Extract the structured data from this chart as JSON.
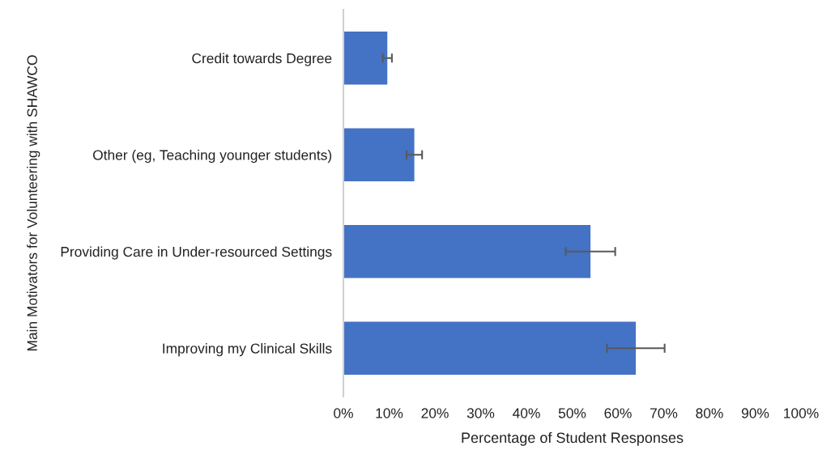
{
  "chart_data": {
    "type": "bar",
    "orientation": "horizontal",
    "xlabel": "Percentage of Student Responses",
    "ylabel": "Main Motivators for Volunteering with SHAWCO",
    "categories": [
      "Credit towards Degree",
      "Other (eg, Teaching younger students)",
      "Providing Care in Under-resourced Settings",
      "Improving my Clinical Skills"
    ],
    "values": [
      9.6,
      15.5,
      54.0,
      63.9
    ],
    "errors": [
      1.0,
      1.7,
      5.4,
      6.3
    ],
    "color": "#4472c4",
    "xlim": [
      0,
      100
    ],
    "xticks": [
      {
        "value": 0,
        "label": "0%"
      },
      {
        "value": 10,
        "label": "10%"
      },
      {
        "value": 20,
        "label": "20%"
      },
      {
        "value": 30,
        "label": "30%"
      },
      {
        "value": 40,
        "label": "40%"
      },
      {
        "value": 50,
        "label": "50%"
      },
      {
        "value": 60,
        "label": "60%"
      },
      {
        "value": 70,
        "label": "70%"
      },
      {
        "value": 80,
        "label": "80%"
      },
      {
        "value": 90,
        "label": "90%"
      },
      {
        "value": 100,
        "label": "100%"
      }
    ],
    "grid": false
  }
}
